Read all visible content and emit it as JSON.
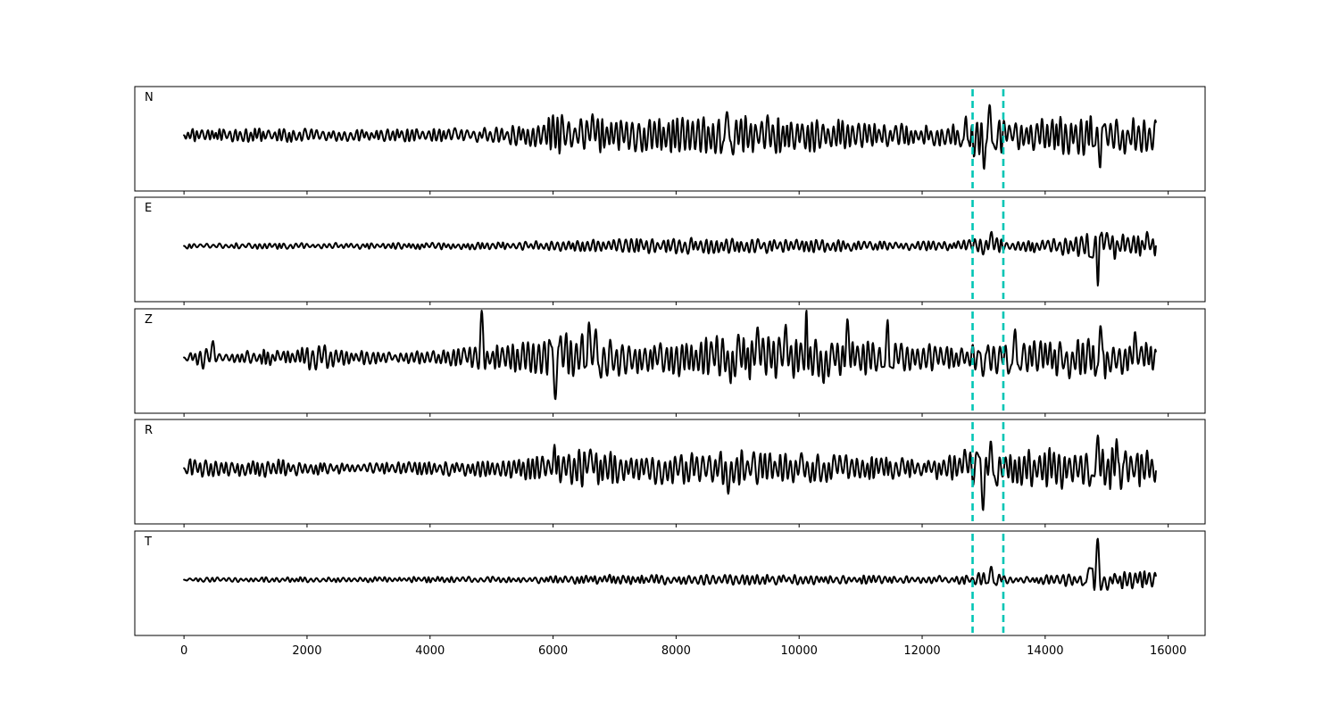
{
  "chart_data": {
    "type": "line",
    "title": "",
    "xlabel": "",
    "ylabel": "",
    "xlim": [
      -800,
      16600
    ],
    "x_range": [
      0,
      15800
    ],
    "xticks": [
      0,
      2000,
      4000,
      6000,
      8000,
      10000,
      12000,
      14000,
      16000
    ],
    "xtick_labels": [
      "0",
      "2000",
      "4000",
      "6000",
      "8000",
      "10000",
      "12000",
      "14000",
      "16000"
    ],
    "grid": false,
    "legend": "none",
    "trace_color": "#000000",
    "marker_color": "#00c5b5",
    "markers": [
      12820,
      13320
    ],
    "series": [
      {
        "name": "N",
        "sharp_peaks": [
          [
            6620,
            0.45
          ],
          [
            8840,
            0.5
          ],
          [
            12700,
            0.4
          ],
          [
            13120,
            0.65
          ],
          [
            14830,
            0.9
          ],
          [
            14890,
            -0.7
          ],
          [
            15300,
            -0.4
          ]
        ],
        "segments": [
          [
            0,
            0.15
          ],
          [
            1500,
            0.15
          ],
          [
            3000,
            0.12
          ],
          [
            5200,
            0.18
          ],
          [
            5800,
            0.3
          ],
          [
            6000,
            0.45
          ],
          [
            7000,
            0.35
          ],
          [
            8500,
            0.4
          ],
          [
            9200,
            0.45
          ],
          [
            10500,
            0.35
          ],
          [
            12000,
            0.22
          ],
          [
            12700,
            0.25
          ],
          [
            13000,
            0.75
          ],
          [
            13400,
            0.3
          ],
          [
            14000,
            0.4
          ],
          [
            14600,
            0.45
          ],
          [
            15000,
            0.45
          ],
          [
            15800,
            0.35
          ]
        ]
      },
      {
        "name": "E",
        "sharp_peaks": [
          [
            13120,
            0.3
          ],
          [
            14800,
            1.0
          ],
          [
            14870,
            -0.85
          ],
          [
            15000,
            0.28
          ],
          [
            15650,
            0.3
          ]
        ],
        "segments": [
          [
            0,
            0.06
          ],
          [
            3000,
            0.07
          ],
          [
            5000,
            0.08
          ],
          [
            6000,
            0.12
          ],
          [
            7500,
            0.16
          ],
          [
            8500,
            0.18
          ],
          [
            9500,
            0.16
          ],
          [
            11000,
            0.12
          ],
          [
            12500,
            0.1
          ],
          [
            13000,
            0.25
          ],
          [
            13400,
            0.12
          ],
          [
            14000,
            0.15
          ],
          [
            14600,
            0.25
          ],
          [
            15000,
            0.3
          ],
          [
            15800,
            0.25
          ]
        ]
      },
      {
        "name": "Z",
        "sharp_peaks": [
          [
            480,
            0.35
          ],
          [
            4850,
            1.0
          ],
          [
            6050,
            -0.9
          ],
          [
            6580,
            0.75
          ],
          [
            6680,
            0.6
          ],
          [
            8900,
            -0.55
          ],
          [
            9300,
            0.65
          ],
          [
            9800,
            0.7
          ],
          [
            10130,
            1.05
          ],
          [
            10400,
            -0.55
          ],
          [
            10800,
            0.82
          ],
          [
            11430,
            0.8
          ],
          [
            13000,
            -0.4
          ],
          [
            13520,
            0.6
          ],
          [
            14380,
            -0.45
          ],
          [
            14880,
            0.68
          ],
          [
            14990,
            -0.45
          ],
          [
            15460,
            0.55
          ]
        ],
        "segments": [
          [
            0,
            0.05
          ],
          [
            300,
            0.25
          ],
          [
            700,
            0.12
          ],
          [
            1300,
            0.18
          ],
          [
            1800,
            0.12
          ],
          [
            2100,
            0.35
          ],
          [
            2500,
            0.18
          ],
          [
            3500,
            0.12
          ],
          [
            4300,
            0.18
          ],
          [
            4800,
            0.3
          ],
          [
            5300,
            0.3
          ],
          [
            5800,
            0.35
          ],
          [
            6200,
            0.55
          ],
          [
            7000,
            0.45
          ],
          [
            8000,
            0.4
          ],
          [
            9000,
            0.5
          ],
          [
            10000,
            0.45
          ],
          [
            11000,
            0.4
          ],
          [
            12000,
            0.3
          ],
          [
            12700,
            0.25
          ],
          [
            13000,
            0.35
          ],
          [
            14000,
            0.4
          ],
          [
            15000,
            0.4
          ],
          [
            15800,
            0.3
          ]
        ]
      },
      {
        "name": "R",
        "sharp_peaks": [
          [
            6010,
            0.5
          ],
          [
            6600,
            0.4
          ],
          [
            8830,
            -0.55
          ],
          [
            12700,
            0.4
          ],
          [
            13000,
            -0.9
          ],
          [
            13130,
            0.58
          ],
          [
            14790,
            0.6
          ],
          [
            14840,
            0.7
          ],
          [
            15150,
            0.62
          ],
          [
            15250,
            -0.45
          ]
        ],
        "segments": [
          [
            0,
            0.2
          ],
          [
            1300,
            0.2
          ],
          [
            3000,
            0.12
          ],
          [
            5200,
            0.2
          ],
          [
            5800,
            0.35
          ],
          [
            6000,
            0.45
          ],
          [
            7000,
            0.35
          ],
          [
            8500,
            0.35
          ],
          [
            9200,
            0.4
          ],
          [
            10500,
            0.3
          ],
          [
            12000,
            0.22
          ],
          [
            12700,
            0.3
          ],
          [
            13000,
            0.7
          ],
          [
            13400,
            0.35
          ],
          [
            14000,
            0.45
          ],
          [
            14600,
            0.5
          ],
          [
            15200,
            0.5
          ],
          [
            15800,
            0.35
          ]
        ]
      },
      {
        "name": "T",
        "sharp_peaks": [
          [
            13100,
            0.28
          ],
          [
            14730,
            0.25
          ],
          [
            14810,
            -0.95
          ],
          [
            14860,
            0.88
          ],
          [
            15000,
            -0.22
          ]
        ],
        "segments": [
          [
            0,
            0.05
          ],
          [
            3000,
            0.06
          ],
          [
            5500,
            0.07
          ],
          [
            6500,
            0.1
          ],
          [
            7500,
            0.12
          ],
          [
            9000,
            0.11
          ],
          [
            10500,
            0.1
          ],
          [
            12000,
            0.08
          ],
          [
            12800,
            0.1
          ],
          [
            13000,
            0.18
          ],
          [
            13400,
            0.08
          ],
          [
            14000,
            0.1
          ],
          [
            14500,
            0.16
          ],
          [
            15000,
            0.2
          ],
          [
            15800,
            0.18
          ]
        ]
      }
    ]
  }
}
